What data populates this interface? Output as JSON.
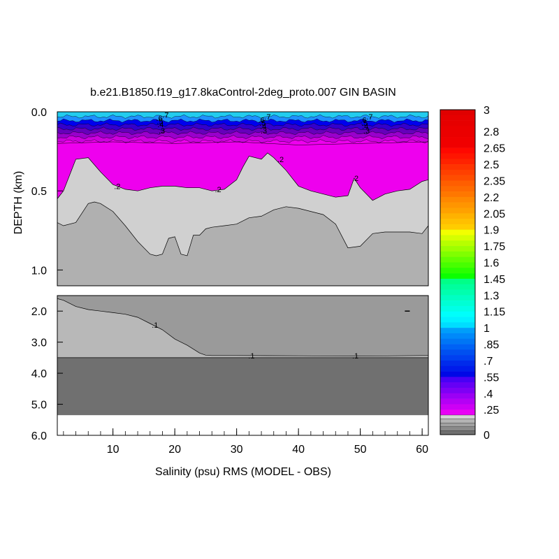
{
  "chart_data": {
    "type": "contour",
    "title": "b.e21.B1850.f19_g17.8kaControl-2deg_proto.007 GIN BASIN",
    "xlabel": "Salinity (psu) RMS (MODEL - OBS)",
    "ylabel": "DEPTH (km)",
    "xlim": [
      1,
      61
    ],
    "x_ticks": [
      10,
      20,
      30,
      40,
      50,
      60
    ],
    "upper_panel": {
      "ylim": [
        0.0,
        1.1
      ],
      "y_ticks": [
        0.0,
        0.5,
        1.0
      ],
      "y_tick_labels": [
        "0.0",
        "0.5",
        "1.0"
      ]
    },
    "lower_panel": {
      "ylim": [
        1.5,
        6.0
      ],
      "y_ticks": [
        2.0,
        3.0,
        4.0,
        5.0,
        6.0
      ],
      "y_tick_labels": [
        "2.0",
        "3.0",
        "4.0",
        "5.0",
        "6.0"
      ]
    },
    "colorbar": {
      "labels": [
        "3",
        "2.8",
        "2.65",
        "2.5",
        "2.35",
        "2.2",
        "2.05",
        "1.9",
        "1.75",
        "1.6",
        "1.45",
        "1.3",
        "1.15",
        "1",
        ".85",
        ".7",
        ".55",
        ".4",
        ".25",
        "0"
      ],
      "label_values": [
        3,
        2.8,
        2.65,
        2.5,
        2.35,
        2.2,
        2.05,
        1.9,
        1.75,
        1.6,
        1.45,
        1.3,
        1.15,
        1,
        0.85,
        0.7,
        0.55,
        0.4,
        0.25,
        0
      ],
      "high_gradient_max": 3.0,
      "high_gradient_min": 0.2,
      "low_levels": [
        0.2,
        0.15,
        0.1,
        0.05,
        0
      ],
      "low_colors": [
        "#d4d4d4",
        "#b4b4b4",
        "#a0a0a0",
        "#8a8a8a",
        "#707070"
      ]
    },
    "region_colors": {
      "band_0.2_plus": "#ee00ee",
      "band_0.1_0.2": "#d0d0d0",
      "band_0.05_0.1": "#b0b0b0",
      "band_lower_high": "#9a9a9a",
      "band_lower_mid": "#b8b8b8",
      "band_bottom": "#707070"
    },
    "surface_layer_colors": [
      "#22ccee",
      "#1e90ff",
      "#0000ee",
      "#3300cc",
      "#6600bb",
      "#9900cc",
      "#cc00dd"
    ],
    "magenta_boundary": {
      "x": [
        1,
        2,
        4,
        6,
        8,
        10,
        12,
        14,
        16,
        18,
        20,
        22,
        24,
        26,
        28,
        30,
        31,
        32,
        34,
        35,
        36,
        38,
        40,
        42,
        44,
        46,
        48,
        49,
        50,
        52,
        54,
        56,
        58,
        60,
        61
      ],
      "y": [
        0.55,
        0.5,
        0.3,
        0.29,
        0.38,
        0.46,
        0.49,
        0.5,
        0.48,
        0.47,
        0.47,
        0.48,
        0.48,
        0.5,
        0.49,
        0.43,
        0.35,
        0.28,
        0.3,
        0.26,
        0.29,
        0.37,
        0.47,
        0.5,
        0.52,
        0.54,
        0.53,
        0.42,
        0.48,
        0.56,
        0.52,
        0.5,
        0.49,
        0.44,
        0.43
      ]
    },
    "grey_boundary": {
      "x": [
        1,
        2,
        4,
        6,
        7,
        8,
        10,
        12,
        14,
        16,
        17,
        18,
        19,
        20,
        21,
        22,
        23,
        24,
        25,
        26,
        28,
        30,
        32,
        34,
        36,
        38,
        40,
        42,
        44,
        46,
        48,
        50,
        52,
        54,
        56,
        58,
        60,
        61
      ],
      "y": [
        0.7,
        0.72,
        0.7,
        0.58,
        0.57,
        0.58,
        0.63,
        0.72,
        0.82,
        0.9,
        0.91,
        0.9,
        0.8,
        0.79,
        0.9,
        0.91,
        0.78,
        0.78,
        0.74,
        0.73,
        0.72,
        0.71,
        0.67,
        0.66,
        0.62,
        0.6,
        0.61,
        0.63,
        0.65,
        0.71,
        0.86,
        0.85,
        0.77,
        0.76,
        0.76,
        0.76,
        0.77,
        0.72
      ]
    },
    "deep_boundary": {
      "x": [
        1,
        2,
        4,
        6,
        8,
        10,
        12,
        14,
        16,
        18,
        20,
        22,
        24,
        25,
        26,
        30,
        40,
        50,
        60,
        61
      ],
      "y": [
        1.6,
        1.65,
        1.85,
        1.95,
        2.0,
        2.05,
        2.1,
        2.2,
        2.4,
        2.6,
        2.9,
        3.1,
        3.35,
        3.42,
        3.43,
        3.43,
        3.44,
        3.45,
        3.43,
        3.43
      ]
    },
    "bottom_boundary_depth": 3.5,
    "data_max_depth": 5.35,
    "annotations": [
      {
        "text": ".7",
        "x": 18.5,
        "y": 0.02
      },
      {
        "text": ".6",
        "x": 17.5,
        "y": 0.04
      },
      {
        "text": ".5",
        "x": 17.6,
        "y": 0.06
      },
      {
        "text": ".4",
        "x": 17.7,
        "y": 0.08
      },
      {
        "text": ".3",
        "x": 17.9,
        "y": 0.12
      },
      {
        "text": ".7",
        "x": 35,
        "y": 0.03
      },
      {
        "text": ".6",
        "x": 34,
        "y": 0.05
      },
      {
        "text": ".5",
        "x": 34.2,
        "y": 0.07
      },
      {
        "text": ".4",
        "x": 34.3,
        "y": 0.09
      },
      {
        "text": ".3",
        "x": 34.4,
        "y": 0.12
      },
      {
        "text": ".7",
        "x": 51.5,
        "y": 0.03
      },
      {
        "text": ".6",
        "x": 50.5,
        "y": 0.05
      },
      {
        "text": ".5",
        "x": 50.7,
        "y": 0.07
      },
      {
        "text": ".4",
        "x": 50.8,
        "y": 0.09
      },
      {
        "text": ".3",
        "x": 51,
        "y": 0.12
      },
      {
        "text": ".2",
        "x": 10.7,
        "y": 0.47
      },
      {
        "text": ".2",
        "x": 27,
        "y": 0.49
      },
      {
        "text": ".2",
        "x": 37.1,
        "y": 0.3
      },
      {
        "text": ".2",
        "x": 49.2,
        "y": 0.42
      },
      {
        "text": ".1",
        "x": 16.8,
        "y": 2.45
      },
      {
        "text": ".1",
        "x": 32.4,
        "y": 3.43
      },
      {
        "text": ".1",
        "x": 49.2,
        "y": 3.43
      }
    ]
  }
}
